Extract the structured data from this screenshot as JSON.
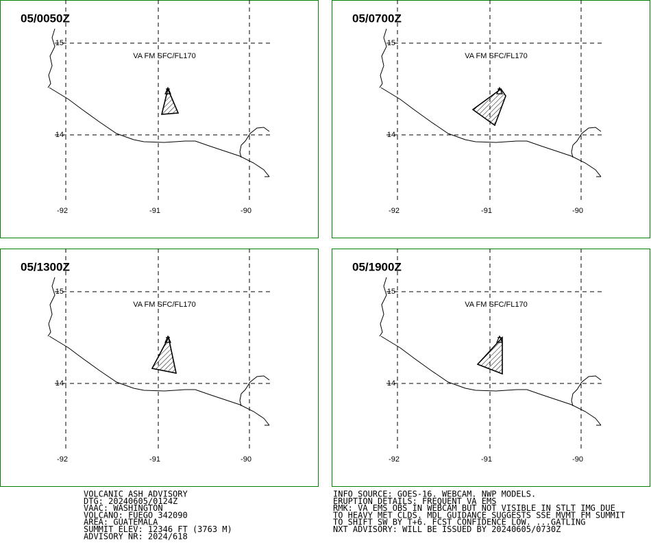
{
  "panels": [
    {
      "time": "05/0050Z",
      "layer": "VA FM SFC/FL170",
      "lat_labels": [
        "15",
        "14"
      ],
      "lon_labels": [
        "-92",
        "-91",
        "-90"
      ]
    },
    {
      "time": "05/0700Z",
      "layer": "VA FM SFC/FL170",
      "lat_labels": [
        "15",
        "14"
      ],
      "lon_labels": [
        "-92",
        "-91",
        "-90"
      ]
    },
    {
      "time": "05/1300Z",
      "layer": "VA FM SFC/FL170",
      "lat_labels": [
        "15",
        "14"
      ],
      "lon_labels": [
        "-92",
        "-91",
        "-90"
      ]
    },
    {
      "time": "05/1900Z",
      "layer": "VA FM SFC/FL170",
      "lat_labels": [
        "15",
        "14"
      ],
      "lon_labels": [
        "-92",
        "-91",
        "-90"
      ]
    }
  ],
  "advisory_left": [
    "VOLCANIC ASH ADVISORY",
    "DTG: 20240605/0124Z",
    "VAAC: WASHINGTON",
    "VOLCANO: FUEGO 342090",
    "AREA: GUATEMALA",
    "SUMMIT ELEV: 12346 FT (3763 M)",
    "ADVISORY NR: 2024/618"
  ],
  "advisory_right": [
    "INFO SOURCE: GOES-16. WEBCAM. NWP MODELS.",
    "ERUPTION DETAILS: FREQUENT VA EMS",
    "RMK: VA EMS OBS IN WEBCAM BUT NOT VISIBLE IN STLT IMG DUE",
    "TO HEAVY MET CLDS. MDL GUIDANCE SUGGESTS SSE MVMT FM SUMMIT",
    "TO SHIFT SW BY T+6. FCST CONFIDENCE LOW. ...GATLING",
    "NXT ADVISORY: WILL BE ISSUED BY 20240605/0730Z"
  ]
}
